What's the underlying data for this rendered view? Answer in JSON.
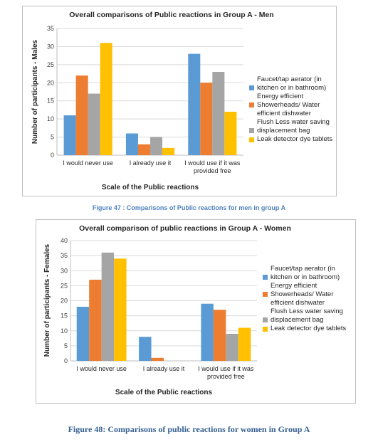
{
  "figures": [
    {
      "caption": "Figure 47 : Comparisons of Public reactions for men in group A",
      "chart_data": {
        "type": "bar",
        "title": "Overall comparisons of Public reactions in Group A - Men",
        "xlabel": "Scale of the Public reactions",
        "ylabel": "Number of participants - Males",
        "categories": [
          "I would never use",
          "I already use it",
          "I would use if it was provided free"
        ],
        "ylim": [
          0,
          35
        ],
        "yticks": [
          0,
          5,
          10,
          15,
          20,
          25,
          30,
          35
        ],
        "grid": true,
        "legend": "right",
        "series": [
          {
            "name": "Faucet/tap aerator (in kitchen or in bathroom)",
            "color": "#5b9bd5",
            "values": [
              11,
              6,
              28
            ]
          },
          {
            "name": "Energy efficient Showerheads/ Water efficient dishwater",
            "color": "#ed7d31",
            "values": [
              22,
              3,
              20
            ]
          },
          {
            "name": "Flush Less water saving displacement bag",
            "color": "#a5a5a5",
            "values": [
              17,
              5,
              23
            ]
          },
          {
            "name": "Leak detector dye tablets",
            "color": "#ffc000",
            "values": [
              31,
              2,
              12
            ]
          }
        ]
      }
    },
    {
      "caption": "Figure 48: Comparisons of public reactions for women in Group A",
      "chart_data": {
        "type": "bar",
        "title": "Overall comparison of public reactions in Group A - Women",
        "xlabel": "Scale of the Public reactions",
        "ylabel": "Number of participants - Females",
        "categories": [
          "I would never use",
          "I already use it",
          "I would use if it was provided free"
        ],
        "ylim": [
          0,
          40
        ],
        "yticks": [
          0,
          5,
          10,
          15,
          20,
          25,
          30,
          35,
          40
        ],
        "grid": true,
        "legend": "right",
        "series": [
          {
            "name": "Faucet/tap aerator (in kitchen or in bathroom)",
            "color": "#5b9bd5",
            "values": [
              18,
              8,
              19
            ]
          },
          {
            "name": "Energy efficient Showerheads/ Water efficient dishwater",
            "color": "#ed7d31",
            "values": [
              27,
              1,
              17
            ]
          },
          {
            "name": "Flush Less water saving displacement bag",
            "color": "#a5a5a5",
            "values": [
              36,
              0,
              9
            ]
          },
          {
            "name": "Leak detector dye tablets",
            "color": "#ffc000",
            "values": [
              34,
              0,
              11
            ]
          }
        ]
      }
    }
  ]
}
